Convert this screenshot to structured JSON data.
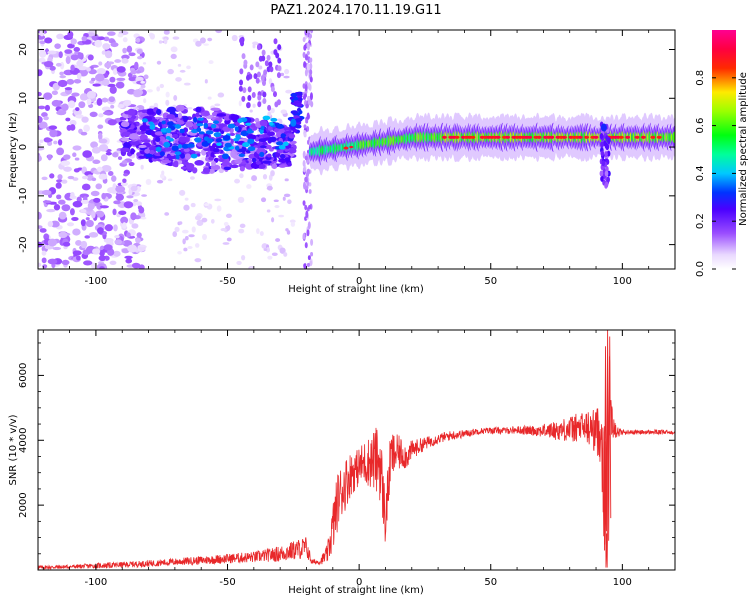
{
  "title": "PAZ1.2024.170.11.19.G11",
  "chart_data": [
    {
      "type": "heatmap",
      "xlabel": "Height of straight line (km)",
      "ylabel": "Frequency (Hz)",
      "xlim": [
        -122,
        120
      ],
      "ylim": [
        -25,
        24
      ],
      "xticks": [
        -100,
        -50,
        0,
        50,
        100
      ],
      "yticks": [
        -20,
        -10,
        0,
        10,
        20
      ],
      "colorbar": {
        "label": "Normalized spectral amplitude",
        "range": [
          0.0,
          1.0
        ],
        "ticks": [
          0.0,
          0.2,
          0.4,
          0.6,
          0.8
        ],
        "colormap": "gist_rainbow-like (white → violet → blue → cyan → green → yellow → red → magenta)"
      },
      "features": [
        {
          "x_range": [
            -122,
            -85
          ],
          "freq_range": [
            -25,
            24
          ],
          "amplitude": "0.05-0.15",
          "pattern": "scattered noise"
        },
        {
          "x_range": [
            -90,
            -25
          ],
          "freq_range": [
            -8,
            12
          ],
          "amplitude": "0.15-0.35",
          "pattern": "broad blob, centered near 3 Hz"
        },
        {
          "x_range": [
            -28,
            -22
          ],
          "freq_range": [
            3,
            10
          ],
          "amplitude": "0.3",
          "pattern": "local peak"
        },
        {
          "x_range": [
            -22,
            -18
          ],
          "freq_range": [
            -25,
            24
          ],
          "amplitude": "0.1",
          "pattern": "vertical streak"
        },
        {
          "x_range": [
            -18,
            120
          ],
          "freq_range": [
            -1,
            3
          ],
          "amplitude": "0.4-0.9",
          "pattern": "narrow band, center rising from -1 Hz to 2 Hz"
        },
        {
          "x_range": [
            91,
            95
          ],
          "freq_range": [
            -8,
            6
          ],
          "amplitude": "0.2-0.3",
          "pattern": "vertical spike"
        }
      ]
    },
    {
      "type": "line",
      "xlabel": "Height of straight line (km)",
      "ylabel": "SNR (10 * v/v)",
      "xlim": [
        -122,
        120
      ],
      "ylim": [
        0,
        7400
      ],
      "xticks": [
        -100,
        -50,
        0,
        50,
        100
      ],
      "yticks": [
        2000,
        4000,
        6000
      ],
      "color": "#e8282a",
      "x": [
        -122,
        -110,
        -100,
        -90,
        -80,
        -70,
        -60,
        -50,
        -40,
        -35,
        -30,
        -25,
        -20,
        -18,
        -15,
        -12,
        -10,
        -8,
        -5,
        -3,
        -1,
        0,
        2,
        4,
        6,
        8,
        10,
        12,
        14,
        16,
        18,
        20,
        25,
        30,
        35,
        40,
        45,
        50,
        55,
        60,
        65,
        70,
        75,
        80,
        85,
        88,
        90,
        92,
        93,
        94,
        95,
        96,
        98,
        100,
        105,
        110,
        115,
        120
      ],
      "y": [
        80,
        100,
        130,
        160,
        200,
        250,
        300,
        350,
        400,
        450,
        500,
        600,
        700,
        250,
        250,
        500,
        1300,
        2200,
        2700,
        3000,
        3100,
        3200,
        3300,
        3350,
        3400,
        3300,
        1500,
        3500,
        3600,
        3600,
        3500,
        3700,
        3900,
        4050,
        4150,
        4200,
        4280,
        4300,
        4300,
        4320,
        4300,
        4300,
        4300,
        4350,
        4400,
        4350,
        4300,
        4200,
        3000,
        600,
        5500,
        4600,
        4250,
        4250,
        4250,
        4250,
        4250,
        4250
      ],
      "noise_amplitude": [
        60,
        60,
        80,
        90,
        100,
        110,
        130,
        150,
        170,
        200,
        250,
        300,
        350,
        80,
        80,
        300,
        800,
        900,
        800,
        700,
        600,
        600,
        700,
        800,
        1000,
        1200,
        800,
        800,
        600,
        500,
        400,
        300,
        200,
        150,
        150,
        120,
        100,
        100,
        100,
        120,
        150,
        200,
        300,
        400,
        500,
        600,
        700,
        1000,
        2500,
        2200,
        1700,
        500,
        200,
        80,
        70,
        70,
        70,
        70
      ]
    }
  ]
}
